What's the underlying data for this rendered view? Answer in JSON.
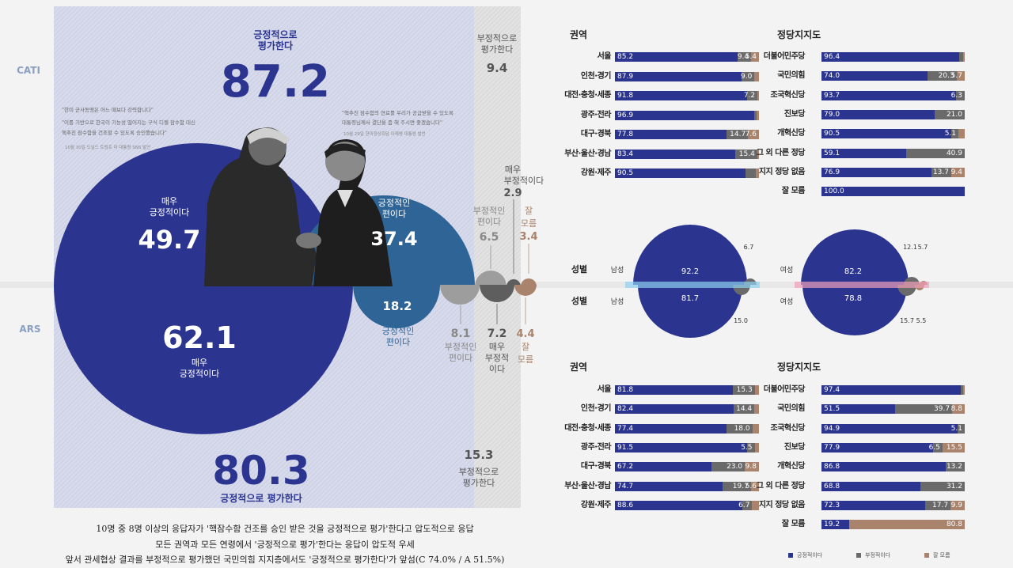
{
  "colors": {
    "positive": "#2b3590",
    "positive_lite": "#2f6496",
    "negative": "#6a6a6a",
    "negative_lite": "#9a9a9a",
    "dk": "#a9836b",
    "bg_pos": "#d5d8ea",
    "bg_neg": "#dcdcdc"
  },
  "labels": {
    "cati": "CATI",
    "ars": "ARS"
  },
  "top": {
    "pos_title_l1": "긍정적으로",
    "pos_title_l2": "평가한다",
    "pos_total": "87.2",
    "neg_title_l1": "부정적으로",
    "neg_title_l2": "평가한다",
    "neg_total": "9.4"
  },
  "bottom": {
    "pos_total": "80.3",
    "pos_title": "긍정적으로 평가한다",
    "neg_total": "15.3",
    "neg_title_l1": "부정적으로",
    "neg_title_l2": "평가한다"
  },
  "quotes": {
    "left_l1": "\"한미 군사동맹은 어느 때보다 강력합니다\"",
    "left_l2": "\"이를 기반으로 한국이 기능성 떨어지는 구식 디젤 잠수함 대신",
    "left_l3": "핵추진 잠수함을 건조할 수 있도록 승인했습니다\"",
    "left_src": "10월 30일 도널드 트럼프 미 대통령 SNS 발언",
    "right_l1": "\"핵추진 잠수함의 연료를 우리가 공급받을 수 있도록",
    "right_l2": "대통령님께서 결단을 좀 해 주시면 좋겠습니다\"",
    "right_src": "10월 29일 한미정상회담 이재명 대통령 발언"
  },
  "circles": {
    "cati": [
      {
        "l1": "매우",
        "l2": "긍정적이다",
        "v": "49.7"
      },
      {
        "l1": "긍정적인",
        "l2": "편이다",
        "v": "37.4"
      },
      {
        "l1": "부정적인",
        "l2": "편이다",
        "v": "6.5"
      },
      {
        "l1": "매우",
        "l2": "부정적이다",
        "v": "2.9"
      },
      {
        "l1": "잘",
        "l2": "모름",
        "v": "3.4"
      }
    ],
    "ars": [
      {
        "v": "62.1",
        "l1": "매우",
        "l2": "긍정적이다"
      },
      {
        "v": "18.2",
        "l1": "긍정적인",
        "l2": "편이다"
      },
      {
        "v": "8.1",
        "l1": "부정적인",
        "l2": "편이다"
      },
      {
        "v": "7.2",
        "l1": "매우",
        "l2": "부정적",
        "l3": "이다"
      },
      {
        "v": "4.4",
        "l1": "잘",
        "l2": "모름"
      }
    ]
  },
  "chart_data": [
    {
      "type": "bar",
      "section": "CATI 권역",
      "title": "권역",
      "stacked": true,
      "categories": [
        "서울",
        "인천·경기",
        "대전·충청·세종",
        "광주·전라",
        "대구·경북",
        "부산·울산·경남",
        "강원·제주"
      ],
      "series": [
        {
          "name": "긍정적이다",
          "values": [
            85.2,
            87.9,
            91.8,
            96.9,
            77.8,
            83.4,
            90.5
          ]
        },
        {
          "name": "부정적이다",
          "values": [
            9.4,
            9.0,
            7.2,
            1.6,
            14.7,
            15.4,
            7.5
          ]
        },
        {
          "name": "잘 모름",
          "values": [
            5.4,
            3.1,
            1.0,
            1.5,
            7.6,
            1.2,
            2.0
          ]
        }
      ],
      "labels": [
        [
          "85.2",
          "9.4",
          "5.4"
        ],
        [
          "87.9",
          "9.0",
          ""
        ],
        [
          "91.8",
          "7.2",
          ""
        ],
        [
          "96.9",
          "",
          ""
        ],
        [
          "77.8",
          "14.7",
          "7.6"
        ],
        [
          "83.4",
          "15.4",
          ""
        ],
        [
          "90.5",
          "",
          ""
        ]
      ]
    },
    {
      "type": "bar",
      "section": "CATI 정당지지도",
      "title": "정당지지도",
      "stacked": true,
      "categories": [
        "더불어민주당",
        "국민의힘",
        "조국혁신당",
        "진보당",
        "개혁신당",
        "그 외 다른 정당",
        "지지 정당 없음",
        "잘 모름"
      ],
      "series": [
        {
          "name": "긍정적이다",
          "values": [
            96.4,
            74.0,
            93.7,
            79.0,
            90.5,
            59.1,
            76.9,
            100.0
          ]
        },
        {
          "name": "부정적이다",
          "values": [
            2.6,
            20.3,
            6.3,
            21.0,
            5.1,
            40.9,
            13.7,
            0
          ]
        },
        {
          "name": "잘 모름",
          "values": [
            1.0,
            5.7,
            0,
            0,
            4.4,
            0,
            9.4,
            0
          ]
        }
      ],
      "labels": [
        [
          "96.4",
          "",
          ""
        ],
        [
          "74.0",
          "20.3",
          "5.7"
        ],
        [
          "93.7",
          "6.3",
          ""
        ],
        [
          "79.0",
          "21.0",
          ""
        ],
        [
          "90.5",
          "5.1",
          ""
        ],
        [
          "59.1",
          "40.9",
          ""
        ],
        [
          "76.9",
          "13.7",
          "9.4"
        ],
        [
          "100.0",
          "",
          ""
        ]
      ]
    },
    {
      "type": "bar",
      "section": "ARS 권역",
      "title": "권역",
      "stacked": true,
      "categories": [
        "서울",
        "인천·경기",
        "대전·충청·세종",
        "광주·전라",
        "대구·경북",
        "부산·울산·경남",
        "강원·제주"
      ],
      "series": [
        {
          "name": "긍정적이다",
          "values": [
            81.8,
            82.4,
            77.4,
            91.5,
            67.2,
            74.7,
            88.6
          ]
        },
        {
          "name": "부정적이다",
          "values": [
            15.3,
            14.4,
            18.0,
            5.5,
            23.0,
            19.7,
            6.7
          ]
        },
        {
          "name": "잘 모름",
          "values": [
            2.9,
            3.2,
            4.6,
            3.0,
            9.8,
            5.6,
            4.7
          ]
        }
      ],
      "labels": [
        [
          "81.8",
          "15.3",
          ""
        ],
        [
          "82.4",
          "14.4",
          ""
        ],
        [
          "77.4",
          "18.0",
          ""
        ],
        [
          "91.5",
          "5.5",
          ""
        ],
        [
          "67.2",
          "23.0",
          "9.8"
        ],
        [
          "74.7",
          "19.7",
          "5.6"
        ],
        [
          "88.6",
          "6.7",
          ""
        ]
      ]
    },
    {
      "type": "bar",
      "section": "ARS 정당지지도",
      "title": "정당지지도",
      "stacked": true,
      "categories": [
        "더불어민주당",
        "국민의힘",
        "조국혁신당",
        "진보당",
        "개혁신당",
        "그 외 다른 정당",
        "지지 정당 없음",
        "잘 모름"
      ],
      "series": [
        {
          "name": "긍정적이다",
          "values": [
            97.4,
            51.5,
            94.9,
            77.9,
            86.8,
            68.8,
            72.3,
            19.2
          ]
        },
        {
          "name": "부정적이다",
          "values": [
            1.6,
            39.7,
            5.1,
            6.5,
            13.2,
            31.2,
            17.7,
            0
          ]
        },
        {
          "name": "잘 모름",
          "values": [
            1.0,
            8.8,
            0,
            15.5,
            0,
            0,
            9.9,
            80.8
          ]
        }
      ],
      "labels": [
        [
          "97.4",
          "",
          ""
        ],
        [
          "51.5",
          "39.7",
          "8.8"
        ],
        [
          "94.9",
          "5.1",
          ""
        ],
        [
          "77.9",
          "6.5",
          "15.5"
        ],
        [
          "86.8",
          "13.2",
          ""
        ],
        [
          "68.8",
          "31.2",
          ""
        ],
        [
          "72.3",
          "17.7",
          "9.9"
        ],
        [
          "19.2",
          "",
          "80.8"
        ]
      ]
    },
    {
      "type": "pie",
      "section": "성별 CATI",
      "gender": [
        "남성",
        "여성"
      ],
      "male": {
        "pos": "92.2",
        "neg": "6.7"
      },
      "female": {
        "pos": "82.2",
        "neg1": "12.1",
        "neg2": "5.7"
      }
    },
    {
      "type": "pie",
      "section": "성별 ARS",
      "gender": [
        "남성",
        "여성"
      ],
      "male": {
        "pos": "81.7",
        "neg": "15.0"
      },
      "female": {
        "pos": "78.8",
        "neg1": "15.7",
        "neg2": "5.5"
      }
    }
  ],
  "gender": {
    "title": "성별",
    "male": "남성",
    "female": "여성"
  },
  "legend": {
    "pos": "긍정적이다",
    "neg": "부정적이다",
    "dk": "잘 모름"
  },
  "caption": {
    "l1": "10명 중 8명 이상의 응답자가 '핵잠수함 건조를 승인 받은 것을 긍정적으로 평가'한다고 압도적으로 응답",
    "l2": "모든 권역과 모든 연령에서 '긍정적으로 평가'한다는 응답이 압도적 우세",
    "l3": "앞서 관세협상 결과를 부정적으로 평가했던 국민의힘 지지층에서도 '긍정적으로 평가한다'가 앞섬(C 74.0% / A 51.5%)"
  }
}
